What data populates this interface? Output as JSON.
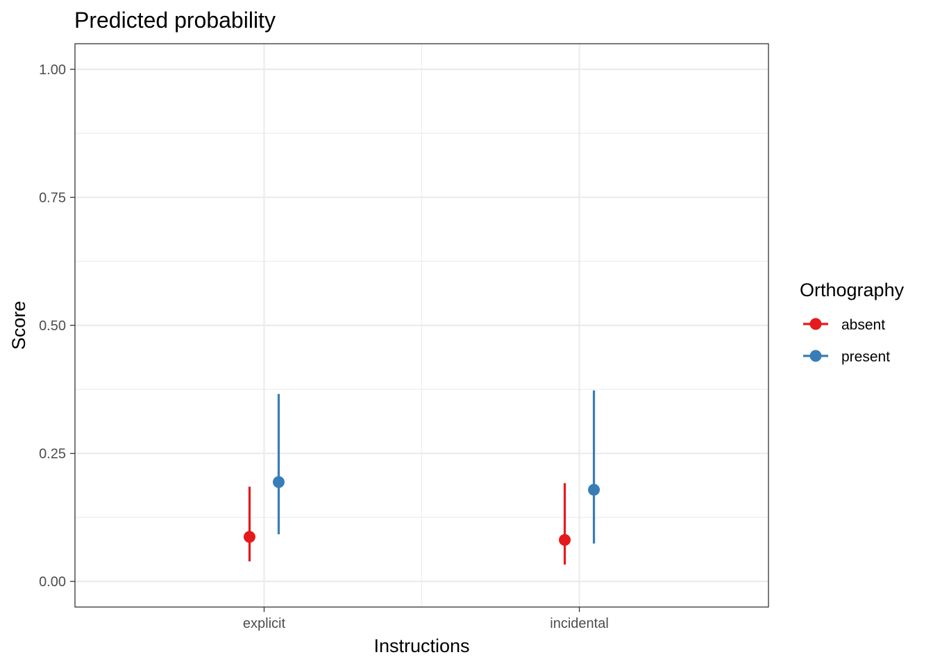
{
  "chart_data": {
    "type": "scatter",
    "title": "Predicted probability",
    "xlabel": "Instructions",
    "ylabel": "Score",
    "categories": [
      "explicit",
      "incidental"
    ],
    "ylim": [
      -0.05,
      1.05
    ],
    "yticks": [
      0.0,
      0.25,
      0.5,
      0.75,
      1.0
    ],
    "ytick_labels": [
      "0.00",
      "0.25",
      "0.50",
      "0.75",
      "1.00"
    ],
    "grid": true,
    "legend": {
      "title": "Orthography",
      "position": "right"
    },
    "series": [
      {
        "name": "absent",
        "color": "#e41a1c",
        "values": [
          0.087,
          0.081
        ],
        "lower": [
          0.039,
          0.033
        ],
        "upper": [
          0.185,
          0.192
        ]
      },
      {
        "name": "present",
        "color": "#377eb8",
        "values": [
          0.194,
          0.179
        ],
        "lower": [
          0.092,
          0.074
        ],
        "upper": [
          0.366,
          0.373
        ]
      }
    ]
  }
}
